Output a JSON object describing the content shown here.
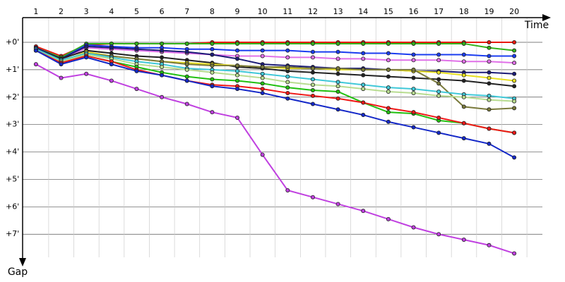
{
  "chart_data": {
    "type": "line",
    "x_label": "Time",
    "y_label": "Gap",
    "x": [
      1,
      2,
      3,
      4,
      5,
      6,
      7,
      8,
      9,
      10,
      11,
      12,
      13,
      14,
      15,
      16,
      17,
      18,
      19,
      20
    ],
    "xlim": [
      0.47,
      21.4
    ],
    "xticks": [
      1,
      2,
      3,
      4,
      5,
      6,
      7,
      8,
      9,
      10,
      11,
      12,
      13,
      14,
      15,
      16,
      17,
      18,
      19,
      20
    ],
    "ylim": [
      -0.9,
      8.1
    ],
    "yticks": [
      {
        "value": 0,
        "label": "+0'"
      },
      {
        "value": 1,
        "label": "+1'"
      },
      {
        "value": 2,
        "label": "+2'"
      },
      {
        "value": 3,
        "label": "+3'"
      },
      {
        "value": 4,
        "label": "+4'"
      },
      {
        "value": 5,
        "label": "+5'"
      },
      {
        "value": 6,
        "label": "+6'"
      },
      {
        "value": 7,
        "label": "+7'"
      }
    ],
    "grid": true,
    "series": [
      {
        "color": "#e8190f",
        "values": [
          0.15,
          0.5,
          0.1,
          0.05,
          0.05,
          0.05,
          0.05,
          0,
          0,
          0,
          0,
          0,
          0,
          0,
          0,
          0,
          0,
          0,
          0,
          0
        ]
      },
      {
        "color": "#33b21a",
        "values": [
          0.2,
          0.55,
          0.05,
          0.05,
          0.05,
          0.05,
          0.05,
          0.05,
          0.05,
          0.05,
          0.05,
          0.05,
          0.05,
          0.05,
          0.05,
          0.05,
          0.05,
          0.05,
          0.2,
          0.3
        ]
      },
      {
        "color": "#1a3cf0",
        "values": [
          0.2,
          0.6,
          0.1,
          0.15,
          0.2,
          0.2,
          0.25,
          0.25,
          0.3,
          0.3,
          0.3,
          0.35,
          0.35,
          0.4,
          0.4,
          0.45,
          0.45,
          0.45,
          0.5,
          0.5
        ]
      },
      {
        "color": "#e070e8",
        "values": [
          0.25,
          0.65,
          0.2,
          0.25,
          0.3,
          0.35,
          0.4,
          0.45,
          0.5,
          0.5,
          0.55,
          0.55,
          0.6,
          0.6,
          0.65,
          0.65,
          0.65,
          0.7,
          0.7,
          0.75
        ]
      },
      {
        "color": "#1c1c78",
        "values": [
          0.2,
          0.6,
          0.15,
          0.2,
          0.25,
          0.3,
          0.35,
          0.45,
          0.6,
          0.8,
          0.85,
          0.9,
          0.95,
          0.95,
          1.0,
          1.05,
          1.05,
          1.1,
          1.1,
          1.15
        ]
      },
      {
        "color": "#222222",
        "values": [
          0.25,
          0.6,
          0.3,
          0.4,
          0.5,
          0.55,
          0.65,
          0.75,
          0.9,
          0.95,
          1.05,
          1.1,
          1.15,
          1.2,
          1.25,
          1.3,
          1.35,
          1.4,
          1.5,
          1.6
        ]
      },
      {
        "color": "#e8e020",
        "values": [
          0.3,
          0.7,
          0.35,
          0.5,
          0.6,
          0.7,
          0.75,
          0.8,
          0.85,
          0.9,
          0.95,
          0.95,
          1.0,
          1.0,
          1.0,
          1.05,
          1.1,
          1.2,
          1.3,
          1.4
        ]
      },
      {
        "color": "#7a7a3c",
        "values": [
          0.3,
          0.7,
          0.4,
          0.5,
          0.6,
          0.7,
          0.8,
          0.85,
          0.85,
          0.9,
          0.9,
          0.95,
          0.95,
          1.0,
          1.0,
          1.0,
          1.5,
          2.35,
          2.45,
          2.4
        ]
      },
      {
        "color": "#40c8d8",
        "values": [
          0.25,
          0.65,
          0.4,
          0.55,
          0.7,
          0.8,
          0.95,
          1.0,
          1.05,
          1.15,
          1.25,
          1.35,
          1.45,
          1.55,
          1.65,
          1.7,
          1.8,
          1.9,
          1.95,
          2.05
        ]
      },
      {
        "color": "#b8dc90",
        "values": [
          0.3,
          0.7,
          0.45,
          0.6,
          0.8,
          0.9,
          1.0,
          1.1,
          1.2,
          1.3,
          1.45,
          1.55,
          1.6,
          1.7,
          1.8,
          1.85,
          1.95,
          2.0,
          2.1,
          2.15
        ]
      },
      {
        "color": "#22c010",
        "values": [
          0.3,
          0.75,
          0.5,
          0.7,
          0.9,
          1.1,
          1.25,
          1.35,
          1.4,
          1.5,
          1.65,
          1.75,
          1.8,
          2.2,
          2.55,
          2.6,
          2.85,
          2.95,
          3.15,
          3.3
        ]
      },
      {
        "color": "#f01818",
        "values": [
          0.3,
          0.75,
          0.5,
          0.7,
          1.0,
          1.2,
          1.4,
          1.55,
          1.6,
          1.7,
          1.85,
          1.95,
          2.05,
          2.2,
          2.4,
          2.55,
          2.75,
          2.95,
          3.15,
          3.3
        ]
      },
      {
        "color": "#1428c8",
        "values": [
          0.3,
          0.8,
          0.55,
          0.8,
          1.05,
          1.2,
          1.4,
          1.6,
          1.7,
          1.85,
          2.05,
          2.25,
          2.45,
          2.65,
          2.9,
          3.1,
          3.3,
          3.5,
          3.7,
          4.2
        ]
      },
      {
        "color": "#c040e0",
        "values": [
          0.8,
          1.3,
          1.15,
          1.4,
          1.7,
          2.0,
          2.25,
          2.55,
          2.75,
          4.1,
          5.4,
          5.65,
          5.9,
          6.15,
          6.45,
          6.75,
          7.0,
          7.2,
          7.4,
          7.7
        ]
      }
    ]
  }
}
